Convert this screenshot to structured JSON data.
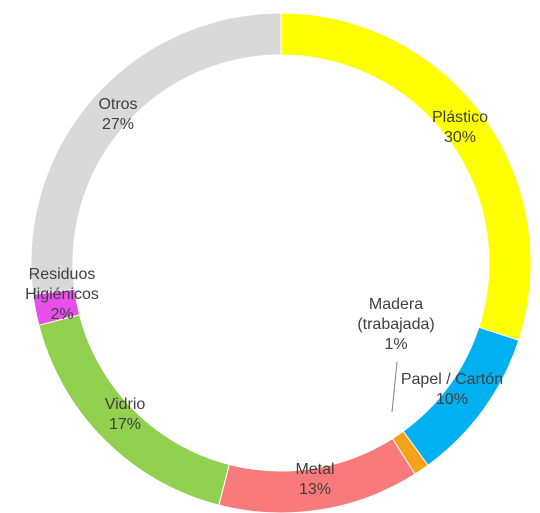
{
  "chart_data": {
    "type": "donut",
    "categories": [
      "Plástico",
      "Papel / Cartón",
      "Madera (trabajada)",
      "Metal",
      "Vidrio",
      "Residuos Higiénicos",
      "Otros"
    ],
    "values": [
      30,
      10,
      1,
      13,
      17,
      2,
      27
    ],
    "value_labels": [
      "30%",
      "10%",
      "1%",
      "13%",
      "17%",
      "2%",
      "27%"
    ],
    "colors": [
      "#ffff00",
      "#00b0f0",
      "#f5a21b",
      "#f87a7a",
      "#92d050",
      "#e84fe8",
      "#d9d9d9"
    ]
  }
}
